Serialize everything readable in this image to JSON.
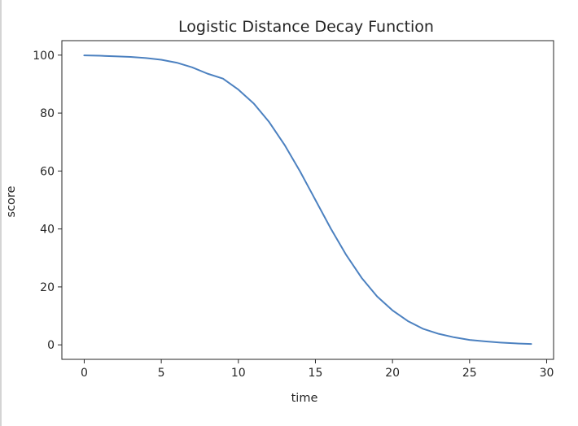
{
  "chart_data": {
    "type": "line",
    "title": "Logistic Distance Decay Function",
    "xlabel": "time",
    "ylabel": "score",
    "xlim": [
      -1.45,
      30.45
    ],
    "ylim": [
      -5,
      105
    ],
    "xticks": [
      0,
      5,
      10,
      15,
      20,
      25,
      30
    ],
    "yticks": [
      0,
      20,
      40,
      60,
      80,
      100
    ],
    "grid": false,
    "series": [
      {
        "color": "#4c81c0",
        "x": [
          0,
          1,
          2,
          3,
          4,
          5,
          6,
          7,
          8,
          9,
          10,
          11,
          12,
          13,
          14,
          15,
          16,
          17,
          18,
          19,
          20,
          21,
          22,
          23,
          24,
          25,
          26,
          27,
          28,
          29
        ],
        "y": [
          99.9,
          99.8,
          99.6,
          99.4,
          99.0,
          98.4,
          97.4,
          95.8,
          93.6,
          91.9,
          88.1,
          83.3,
          76.9,
          69.0,
          59.9,
          50.0,
          40.1,
          31.0,
          23.1,
          16.7,
          11.9,
          8.2,
          5.5,
          3.8,
          2.6,
          1.7,
          1.2,
          0.8,
          0.5,
          0.3
        ]
      }
    ]
  }
}
